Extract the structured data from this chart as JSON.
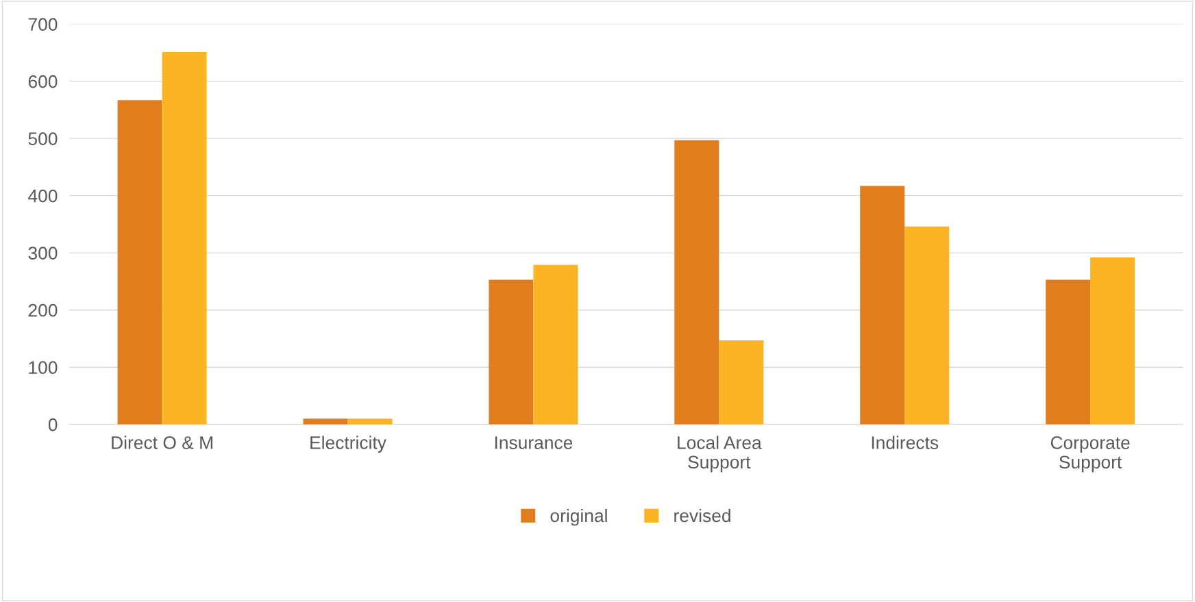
{
  "chart_data": {
    "type": "bar",
    "categories": [
      "Direct O & M",
      "Electricity",
      "Insurance",
      "Local Area\nSupport",
      "Indirects",
      "Corporate\nSupport"
    ],
    "series": [
      {
        "name": "original",
        "color": "#e27d1e",
        "values": [
          567,
          10,
          253,
          497,
          417,
          253
        ]
      },
      {
        "name": "revised",
        "color": "#fbb524",
        "values": [
          651,
          10,
          279,
          147,
          346,
          292
        ]
      }
    ],
    "ylim": [
      0,
      700
    ],
    "yticks": [
      0,
      100,
      200,
      300,
      400,
      500,
      600,
      700
    ],
    "grid": "y",
    "legend": "bottom"
  }
}
